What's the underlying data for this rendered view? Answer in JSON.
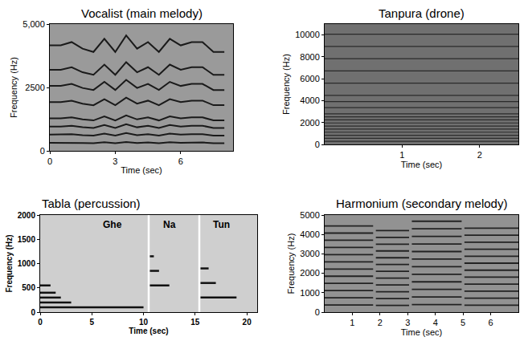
{
  "chart_data": [
    {
      "type": "line",
      "title": "Vocalist (main melody)",
      "xlabel": "Time (sec)",
      "ylabel": "Frequency (Hz)",
      "xlim": [
        0,
        8.4
      ],
      "ylim": [
        0,
        5000
      ],
      "xticks": [
        0,
        3,
        6
      ],
      "yticks": [
        0,
        2500,
        {
          "value": 5000,
          "label": "5,000"
        }
      ],
      "grid": false,
      "color": "#1a1a1a",
      "x": [
        0,
        0.5,
        1,
        1.5,
        2,
        2.5,
        3,
        3.5,
        4,
        4.5,
        5,
        5.5,
        6,
        6.5,
        7,
        7.5,
        8
      ],
      "series": [
        {
          "values": [
            320,
            320,
            330,
            310,
            300,
            340,
            300,
            350,
            310,
            330,
            300,
            340,
            320,
            330,
            330,
            300,
            300
          ]
        },
        {
          "values": [
            640,
            640,
            660,
            620,
            600,
            680,
            600,
            700,
            620,
            660,
            600,
            680,
            640,
            660,
            660,
            600,
            600
          ]
        },
        {
          "values": [
            960,
            960,
            990,
            930,
            900,
            1020,
            900,
            1050,
            930,
            990,
            900,
            1020,
            960,
            990,
            990,
            900,
            900
          ]
        },
        {
          "values": [
            1280,
            1280,
            1320,
            1240,
            1200,
            1360,
            1200,
            1400,
            1240,
            1320,
            1200,
            1360,
            1280,
            1320,
            1320,
            1200,
            1200
          ]
        },
        {
          "values": [
            1920,
            1920,
            1980,
            1860,
            1800,
            2040,
            1800,
            2100,
            1860,
            1980,
            1800,
            2040,
            1920,
            1980,
            1980,
            1800,
            1800
          ]
        },
        {
          "values": [
            2560,
            2560,
            2640,
            2480,
            2400,
            2720,
            2400,
            2800,
            2480,
            2640,
            2400,
            2720,
            2560,
            2640,
            2640,
            2400,
            2400
          ]
        },
        {
          "values": [
            3200,
            3200,
            3300,
            3100,
            3000,
            3400,
            3000,
            3500,
            3100,
            3300,
            3000,
            3400,
            3200,
            3300,
            3300,
            3000,
            3000
          ]
        },
        {
          "values": [
            4160,
            4160,
            4290,
            4030,
            3900,
            4420,
            3900,
            4550,
            4030,
            4290,
            3900,
            4420,
            4160,
            4290,
            4290,
            3900,
            3900
          ]
        }
      ]
    },
    {
      "type": "line",
      "title": "Tanpura (drone)",
      "xlabel": "Time (sec)",
      "ylabel": "Frequency (Hz)",
      "xlim": [
        0,
        2.5
      ],
      "ylim": [
        0,
        11000
      ],
      "xticks": [
        1,
        2
      ],
      "yticks": [
        0,
        2000,
        4000,
        6000,
        8000,
        10000
      ],
      "grid": false,
      "color": "#2a2a2a",
      "x": [
        0,
        2.5
      ],
      "series": [
        {
          "values": [
            280,
            280
          ]
        },
        {
          "values": [
            560,
            560
          ]
        },
        {
          "values": [
            840,
            840
          ]
        },
        {
          "values": [
            1120,
            1120
          ]
        },
        {
          "values": [
            1400,
            1400
          ]
        },
        {
          "values": [
            1680,
            1680
          ]
        },
        {
          "values": [
            1960,
            1960
          ]
        },
        {
          "values": [
            2240,
            2240
          ]
        },
        {
          "values": [
            2520,
            2520
          ]
        },
        {
          "values": [
            2800,
            2800
          ]
        },
        {
          "values": [
            3360,
            3360
          ]
        },
        {
          "values": [
            3920,
            3920
          ]
        },
        {
          "values": [
            4480,
            4480
          ]
        },
        {
          "values": [
            5600,
            5600
          ]
        },
        {
          "values": [
            6720,
            6720
          ]
        },
        {
          "values": [
            7840,
            7840
          ]
        },
        {
          "values": [
            8960,
            8960
          ]
        },
        {
          "values": [
            10080,
            10080
          ]
        }
      ]
    },
    {
      "type": "line",
      "title": "Tabla (percussion)",
      "xlabel": "Time (sec)",
      "ylabel": "Frequency (Hz)",
      "xlim": [
        0,
        21
      ],
      "ylim": [
        0,
        2000
      ],
      "xticks": [
        0,
        5,
        10,
        15,
        20
      ],
      "yticks": [
        0,
        500,
        1000,
        1500,
        2000
      ],
      "grid": false,
      "color": "#111111",
      "annotations": [
        {
          "text": "Ghe",
          "x": 7,
          "y": 1800
        },
        {
          "text": "Na",
          "x": 12.5,
          "y": 1800
        },
        {
          "text": "Tun",
          "x": 17.5,
          "y": 1800
        }
      ],
      "series": [
        {
          "x": [
            0,
            10
          ],
          "values": [
            100,
            100
          ]
        },
        {
          "x": [
            0,
            3
          ],
          "values": [
            200,
            200
          ]
        },
        {
          "x": [
            0,
            2
          ],
          "values": [
            300,
            300
          ]
        },
        {
          "x": [
            0,
            1.5
          ],
          "values": [
            400,
            400
          ]
        },
        {
          "x": [
            0,
            1
          ],
          "values": [
            550,
            550
          ]
        },
        {
          "x": [
            10.6,
            12.5
          ],
          "values": [
            550,
            550
          ]
        },
        {
          "x": [
            10.6,
            11.5
          ],
          "values": [
            850,
            850
          ]
        },
        {
          "x": [
            10.6,
            11
          ],
          "values": [
            1150,
            1150
          ]
        },
        {
          "x": [
            15.5,
            19
          ],
          "values": [
            300,
            300
          ]
        },
        {
          "x": [
            15.5,
            17
          ],
          "values": [
            600,
            600
          ]
        },
        {
          "x": [
            15.5,
            16.3
          ],
          "values": [
            900,
            900
          ]
        },
        {
          "x": [
            10.5,
            10.5
          ],
          "values": [
            0,
            2000
          ],
          "color": "#ffffff"
        },
        {
          "x": [
            15.4,
            15.4
          ],
          "values": [
            0,
            2000
          ],
          "color": "#ffffff"
        }
      ]
    },
    {
      "type": "line",
      "title": "Harmonium (secondary melody)",
      "xlabel": "Time (sec)",
      "ylabel": "Frequency (Hz)",
      "xlim": [
        0,
        7
      ],
      "ylim": [
        0,
        5000
      ],
      "xticks": [
        1,
        2,
        3,
        4,
        5,
        6
      ],
      "yticks": [
        0,
        1000,
        2000,
        3000,
        4000,
        5000
      ],
      "grid": false,
      "color": "#222222",
      "x": [
        0,
        1.75,
        1.8,
        1.85,
        3.05,
        3.1,
        3.15,
        4.95,
        5,
        5.05,
        7
      ],
      "series": [
        {
          "values": [
            370,
            370,
            null,
            350,
            350,
            null,
            390,
            390,
            null,
            360,
            360
          ]
        },
        {
          "values": [
            740,
            740,
            null,
            700,
            700,
            null,
            780,
            780,
            null,
            720,
            720
          ]
        },
        {
          "values": [
            1110,
            1110,
            null,
            1050,
            1050,
            null,
            1170,
            1170,
            null,
            1080,
            1080
          ]
        },
        {
          "values": [
            1480,
            1480,
            null,
            1400,
            1400,
            null,
            1560,
            1560,
            null,
            1440,
            1440
          ]
        },
        {
          "values": [
            1850,
            1850,
            null,
            1750,
            1750,
            null,
            1950,
            1950,
            null,
            1800,
            1800
          ]
        },
        {
          "values": [
            2220,
            2220,
            null,
            2100,
            2100,
            null,
            2340,
            2340,
            null,
            2160,
            2160
          ]
        },
        {
          "values": [
            2590,
            2590,
            null,
            2450,
            2450,
            null,
            2730,
            2730,
            null,
            2520,
            2520
          ]
        },
        {
          "values": [
            2960,
            2960,
            null,
            2800,
            2800,
            null,
            3120,
            3120,
            null,
            2880,
            2880
          ]
        },
        {
          "values": [
            3330,
            3330,
            null,
            3150,
            3150,
            null,
            3510,
            3510,
            null,
            3240,
            3240
          ]
        },
        {
          "values": [
            3700,
            3700,
            null,
            3500,
            3500,
            null,
            3900,
            3900,
            null,
            3600,
            3600
          ]
        },
        {
          "values": [
            4070,
            4070,
            null,
            3850,
            3850,
            null,
            4290,
            4290,
            null,
            3960,
            3960
          ]
        },
        {
          "values": [
            4440,
            4440,
            null,
            4200,
            4200,
            null,
            4680,
            4680,
            null,
            4320,
            4320
          ]
        }
      ]
    }
  ]
}
